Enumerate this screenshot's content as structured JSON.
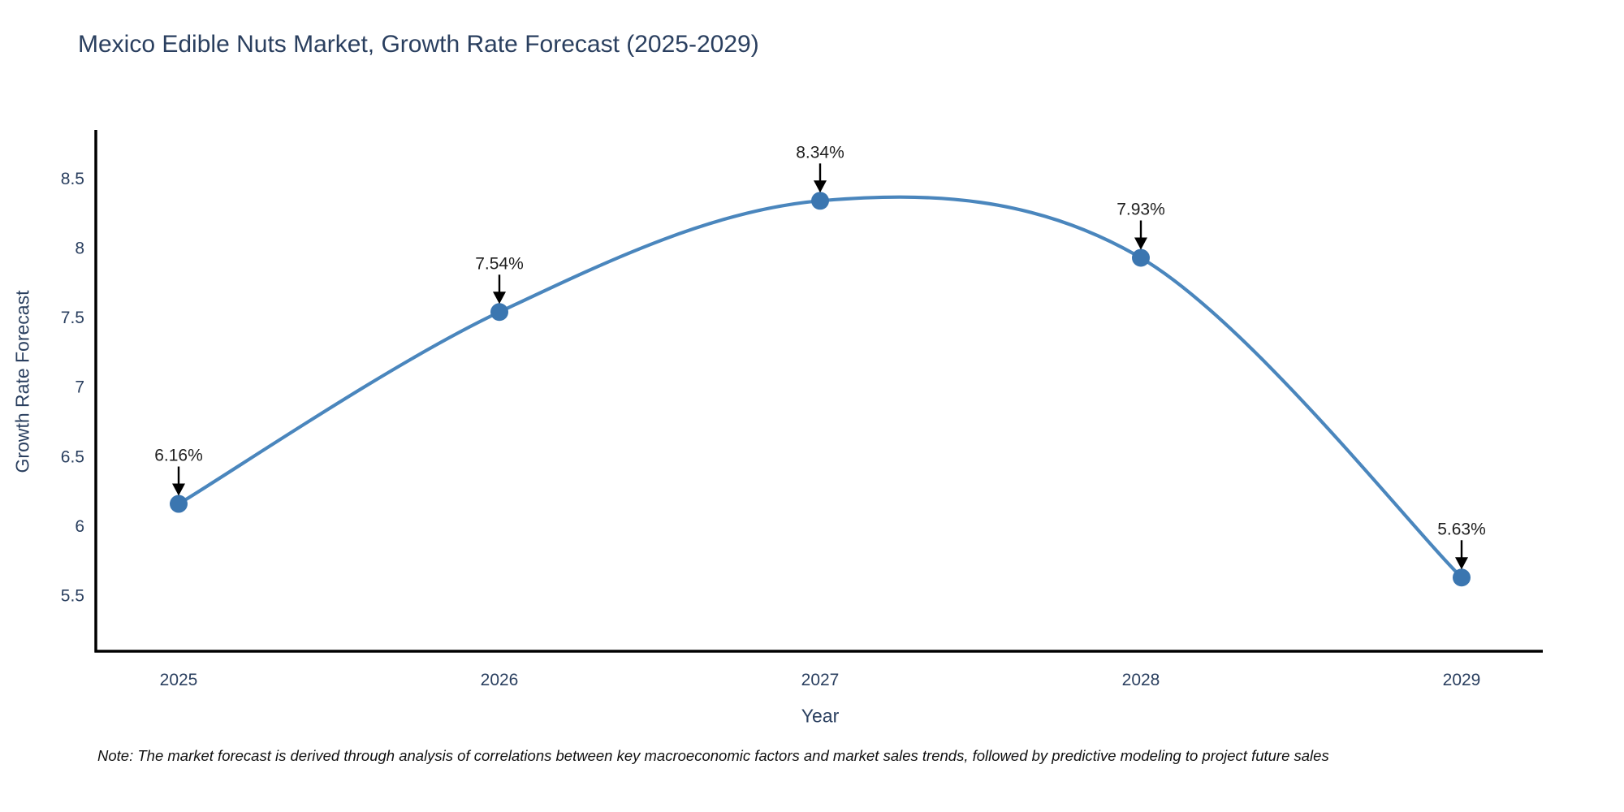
{
  "note": "Note: The market forecast is derived through analysis of correlations between key macroeconomic factors and market sales trends, followed by predictive modeling to project future sales",
  "chart_data": {
    "type": "line",
    "title": "Mexico Edible Nuts Market, Growth Rate Forecast (2025-2029)",
    "xlabel": "Year",
    "ylabel": "Growth Rate Forecast",
    "categories": [
      "2025",
      "2026",
      "2027",
      "2028",
      "2029"
    ],
    "series": [
      {
        "name": "Growth Rate Forecast",
        "values": [
          6.16,
          7.54,
          8.34,
          7.93,
          5.63
        ],
        "point_labels": [
          "6.16%",
          "7.54%",
          "8.34%",
          "7.93%",
          "5.63%"
        ]
      }
    ],
    "ytick_labels": [
      "5.5",
      "6",
      "6.5",
      "7",
      "7.5",
      "8",
      "8.5"
    ],
    "ytick_values": [
      5.5,
      6.0,
      6.5,
      7.0,
      7.5,
      8.0,
      8.5
    ],
    "ylim": [
      5.1,
      8.85
    ],
    "grid": false,
    "legend_position": "none",
    "line_shape": "spline",
    "colors": {
      "line": "#4a86bd",
      "marker": "#3b76b0",
      "axis": "#000000",
      "label_text": "#2a3f5f",
      "annotation_text": "#1f1f1f",
      "annotation_arrow": "#000000"
    }
  }
}
